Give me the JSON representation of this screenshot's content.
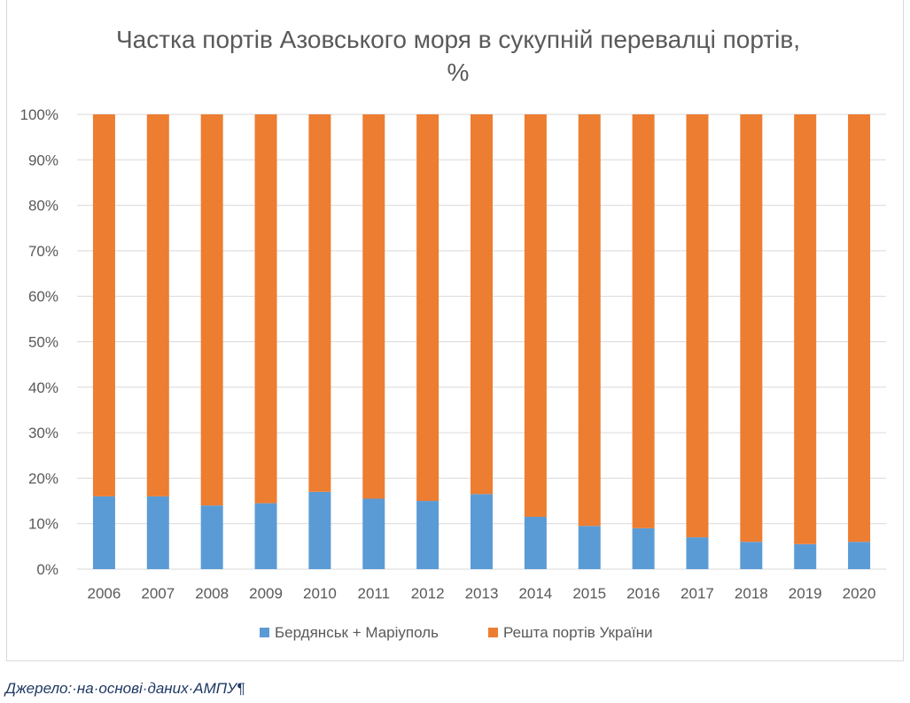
{
  "chart_data": {
    "type": "bar",
    "stacked": true,
    "title_line1": "Частка портів Азовського моря в сукупній перевалці портів,",
    "title_line2": "%",
    "categories": [
      "2006",
      "2007",
      "2008",
      "2009",
      "2010",
      "2011",
      "2012",
      "2013",
      "2014",
      "2015",
      "2016",
      "2017",
      "2018",
      "2019",
      "2020"
    ],
    "series": [
      {
        "name": "Бердянськ + Маріуполь",
        "color": "#5b9bd5",
        "values": [
          16,
          16,
          14,
          14.5,
          17,
          15.5,
          15,
          16.5,
          11.5,
          9.5,
          9,
          7,
          6,
          5.5,
          6
        ]
      },
      {
        "name": "Решта портів України",
        "color": "#ed7d31",
        "values": [
          84,
          84,
          86,
          85.5,
          83,
          84.5,
          85,
          83.5,
          88.5,
          90.5,
          91,
          93,
          94,
          94.5,
          94
        ]
      }
    ],
    "y_ticks": [
      "0%",
      "10%",
      "20%",
      "30%",
      "40%",
      "50%",
      "60%",
      "70%",
      "80%",
      "90%",
      "100%"
    ],
    "ylim": [
      0,
      100
    ],
    "grid": true,
    "legend_position": "bottom"
  },
  "source_text": "Джерело:·на·основі·даних·АМПУ¶"
}
